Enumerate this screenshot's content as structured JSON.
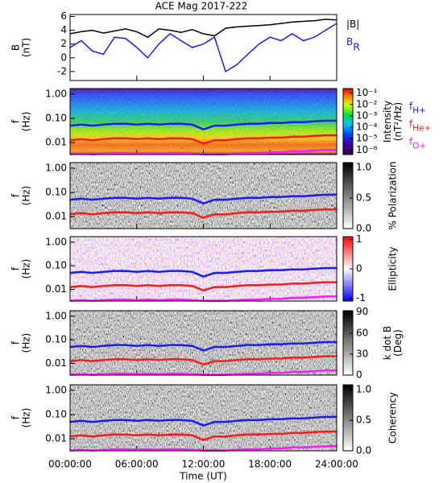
{
  "chart_data": [
    {
      "type": "line",
      "title": "ACE Mag 2017-222",
      "ylabel": [
        "B",
        "(nT)"
      ],
      "x": [
        0,
        1,
        2,
        3,
        4,
        5,
        6,
        7,
        8,
        9,
        10,
        11,
        12,
        13,
        14,
        15,
        16,
        17,
        18,
        19,
        20,
        21,
        22,
        23,
        24
      ],
      "xlim": [
        0,
        24
      ],
      "ylim": [
        -3.3,
        6.3
      ],
      "yticks": [
        -2,
        0,
        2,
        4,
        6
      ],
      "series": [
        {
          "label": "|B|",
          "color": "#000000",
          "values": [
            3.5,
            3.8,
            4.0,
            3.6,
            3.9,
            4.2,
            3.8,
            3.0,
            4.2,
            4.0,
            3.7,
            4.1,
            3.5,
            3.2,
            4.3,
            4.5,
            4.6,
            4.7,
            4.8,
            5.0,
            5.2,
            5.3,
            5.4,
            5.6,
            5.5
          ]
        },
        {
          "label": "B",
          "subscript": "R",
          "color": "#1a1aff",
          "values": [
            1.5,
            2.5,
            1.0,
            0.5,
            3.0,
            2.8,
            1.5,
            0.0,
            2.0,
            3.5,
            2.5,
            1.5,
            2.0,
            3.0,
            -2.0,
            -1.0,
            0.5,
            2.0,
            3.0,
            2.5,
            3.5,
            2.5,
            3.0,
            4.0,
            5.0
          ]
        }
      ]
    },
    {
      "type": "spectrogram",
      "ylabel": [
        "f",
        "(Hz)"
      ],
      "log_y": true,
      "x": [
        0,
        1,
        2,
        3,
        4,
        5,
        6,
        7,
        8,
        9,
        10,
        11,
        12,
        13,
        14,
        15,
        16,
        17,
        18,
        19,
        20,
        21,
        22,
        23,
        24
      ],
      "xlim": [
        0,
        24
      ],
      "ylim": [
        0.0032,
        1.7
      ],
      "yticks": [
        {
          "value": 0.01,
          "label": "0.01"
        },
        {
          "value": 0.1,
          "label": "0.10"
        },
        {
          "value": 1,
          "label": "1.00"
        }
      ],
      "colorbar": {
        "label": [
          "Intensity",
          "(nT²/Hz)"
        ],
        "colormap": "rainbow",
        "log": true,
        "lim": [
          4e-07,
          0.25
        ],
        "ticks": [
          {
            "value": 0.1,
            "label": "10⁻¹"
          },
          {
            "value": 0.01,
            "label": "10⁻²"
          },
          {
            "value": 0.001,
            "label": "10⁻³"
          },
          {
            "value": 0.0001,
            "label": "10⁻⁴"
          },
          {
            "value": 1e-05,
            "label": "10⁻⁵"
          },
          {
            "value": 1e-06,
            "label": "10⁻⁶"
          }
        ]
      },
      "series": [
        {
          "label": "f",
          "subscript": "H+",
          "color": "#1a1aff",
          "values": [
            0.05,
            0.055,
            0.05,
            0.055,
            0.06,
            0.06,
            0.055,
            0.06,
            0.055,
            0.06,
            0.06,
            0.055,
            0.035,
            0.05,
            0.05,
            0.055,
            0.06,
            0.06,
            0.065,
            0.065,
            0.07,
            0.07,
            0.075,
            0.08,
            0.08
          ]
        },
        {
          "label": "f",
          "subscript": "He+",
          "color": "#ff1a1a",
          "values": [
            0.0125,
            0.014,
            0.0125,
            0.014,
            0.015,
            0.015,
            0.014,
            0.015,
            0.014,
            0.015,
            0.015,
            0.014,
            0.009,
            0.0125,
            0.0125,
            0.014,
            0.015,
            0.015,
            0.016,
            0.016,
            0.0175,
            0.0175,
            0.019,
            0.02,
            0.02
          ]
        },
        {
          "label": "f",
          "subscript": "O+",
          "color": "#ff1aff",
          "values": [
            0.0033,
            0.0035,
            0.0033,
            0.0035,
            0.0037,
            0.0037,
            0.0035,
            0.0037,
            0.0035,
            0.0037,
            0.0037,
            0.0035,
            0.0033,
            0.0033,
            0.0033,
            0.0035,
            0.0037,
            0.0037,
            0.004,
            0.004,
            0.0044,
            0.0044,
            0.0047,
            0.005,
            0.005
          ]
        }
      ]
    },
    {
      "type": "spectrogram",
      "ylabel": [
        "f",
        "(Hz)"
      ],
      "log_y": true,
      "x": [
        0,
        1,
        2,
        3,
        4,
        5,
        6,
        7,
        8,
        9,
        10,
        11,
        12,
        13,
        14,
        15,
        16,
        17,
        18,
        19,
        20,
        21,
        22,
        23,
        24
      ],
      "xlim": [
        0,
        24
      ],
      "ylim": [
        0.0032,
        1.7
      ],
      "yticks": [
        {
          "value": 0.01,
          "label": "0.01"
        },
        {
          "value": 0.1,
          "label": "0.10"
        },
        {
          "value": 1,
          "label": "1.00"
        }
      ],
      "colorbar": {
        "label": [
          "% Polarization"
        ],
        "colormap": "gray",
        "lim": [
          0,
          1.08
        ],
        "ticks": [
          {
            "value": 0,
            "label": "0.0"
          },
          {
            "value": 0.5,
            "label": "0.5"
          },
          {
            "value": 1,
            "label": "1.0"
          }
        ]
      },
      "series": [
        {
          "color": "#1a1aff",
          "values": [
            0.05,
            0.055,
            0.05,
            0.055,
            0.06,
            0.06,
            0.055,
            0.06,
            0.055,
            0.06,
            0.06,
            0.055,
            0.035,
            0.05,
            0.05,
            0.055,
            0.06,
            0.06,
            0.065,
            0.065,
            0.07,
            0.07,
            0.075,
            0.08,
            0.08
          ]
        },
        {
          "color": "#ff1a1a",
          "values": [
            0.0125,
            0.014,
            0.0125,
            0.014,
            0.015,
            0.015,
            0.014,
            0.015,
            0.014,
            0.015,
            0.015,
            0.014,
            0.009,
            0.0125,
            0.0125,
            0.014,
            0.015,
            0.015,
            0.016,
            0.016,
            0.0175,
            0.0175,
            0.019,
            0.02,
            0.02
          ]
        }
      ]
    },
    {
      "type": "spectrogram",
      "ylabel": [
        "f",
        "(Hz)"
      ],
      "log_y": true,
      "x": [
        0,
        1,
        2,
        3,
        4,
        5,
        6,
        7,
        8,
        9,
        10,
        11,
        12,
        13,
        14,
        15,
        16,
        17,
        18,
        19,
        20,
        21,
        22,
        23,
        24
      ],
      "xlim": [
        0,
        24
      ],
      "ylim": [
        0.0032,
        1.7
      ],
      "yticks": [
        {
          "value": 0.01,
          "label": "0.01"
        },
        {
          "value": 0.1,
          "label": "0.10"
        },
        {
          "value": 1,
          "label": "1.00"
        }
      ],
      "colorbar": {
        "label": [
          "Ellipticity"
        ],
        "colormap": "bwr",
        "lim": [
          -1.1,
          1.1
        ],
        "ticks": [
          -1,
          0,
          1
        ]
      },
      "series": [
        {
          "color": "#1a1aff",
          "values": [
            0.05,
            0.055,
            0.05,
            0.055,
            0.06,
            0.06,
            0.055,
            0.06,
            0.055,
            0.06,
            0.06,
            0.055,
            0.035,
            0.05,
            0.05,
            0.055,
            0.06,
            0.06,
            0.065,
            0.065,
            0.07,
            0.07,
            0.075,
            0.08,
            0.08
          ]
        },
        {
          "color": "#ff1a1a",
          "values": [
            0.0125,
            0.014,
            0.0125,
            0.014,
            0.015,
            0.015,
            0.014,
            0.015,
            0.014,
            0.015,
            0.015,
            0.014,
            0.009,
            0.0125,
            0.0125,
            0.014,
            0.015,
            0.015,
            0.016,
            0.016,
            0.0175,
            0.0175,
            0.019,
            0.02,
            0.02
          ]
        },
        {
          "color": "#ff1aff",
          "values": [
            0.0033,
            0.0035,
            0.0033,
            0.0035,
            0.0037,
            0.0037,
            0.0035,
            0.0037,
            0.0035,
            0.0037,
            0.0037,
            0.0035,
            0.0033,
            0.0033,
            0.0033,
            0.0035,
            0.0037,
            0.0037,
            0.004,
            0.004,
            0.0044,
            0.0044,
            0.0047,
            0.005,
            0.005
          ]
        }
      ]
    },
    {
      "type": "spectrogram",
      "ylabel": [
        "f",
        "(Hz)"
      ],
      "log_y": true,
      "x": [
        0,
        1,
        2,
        3,
        4,
        5,
        6,
        7,
        8,
        9,
        10,
        11,
        12,
        13,
        14,
        15,
        16,
        17,
        18,
        19,
        20,
        21,
        22,
        23,
        24
      ],
      "xlim": [
        0,
        24
      ],
      "ylim": [
        0.0032,
        1.7
      ],
      "yticks": [
        {
          "value": 0.01,
          "label": "0.01"
        },
        {
          "value": 0.1,
          "label": "0.10"
        },
        {
          "value": 1,
          "label": "1.00"
        }
      ],
      "colorbar": {
        "label": [
          "k dot B",
          "(Deg)"
        ],
        "colormap": "gray",
        "lim": [
          0,
          92
        ],
        "ticks": [
          0,
          30,
          60,
          90
        ]
      },
      "series": [
        {
          "color": "#1a1aff",
          "values": [
            0.05,
            0.055,
            0.05,
            0.055,
            0.06,
            0.06,
            0.055,
            0.06,
            0.055,
            0.06,
            0.06,
            0.055,
            0.035,
            0.05,
            0.05,
            0.055,
            0.06,
            0.06,
            0.065,
            0.065,
            0.07,
            0.07,
            0.075,
            0.08,
            0.08
          ]
        },
        {
          "color": "#ff1a1a",
          "values": [
            0.0125,
            0.014,
            0.0125,
            0.014,
            0.015,
            0.015,
            0.014,
            0.015,
            0.014,
            0.015,
            0.015,
            0.014,
            0.009,
            0.0125,
            0.0125,
            0.014,
            0.015,
            0.015,
            0.016,
            0.016,
            0.0175,
            0.0175,
            0.019,
            0.02,
            0.02
          ]
        },
        {
          "color": "#ff1aff",
          "values": [
            0.0033,
            0.0035,
            0.0033,
            0.0035,
            0.0037,
            0.0037,
            0.0035,
            0.0037,
            0.0035,
            0.0037,
            0.0037,
            0.0035,
            0.0033,
            0.0033,
            0.0033,
            0.0035,
            0.0037,
            0.0037,
            0.004,
            0.004,
            0.0044,
            0.0044,
            0.0047,
            0.005,
            0.005
          ]
        }
      ]
    },
    {
      "type": "spectrogram",
      "ylabel": [
        "f",
        "(Hz)"
      ],
      "log_y": true,
      "x": [
        0,
        1,
        2,
        3,
        4,
        5,
        6,
        7,
        8,
        9,
        10,
        11,
        12,
        13,
        14,
        15,
        16,
        17,
        18,
        19,
        20,
        21,
        22,
        23,
        24
      ],
      "xlim": [
        0,
        24
      ],
      "ylim": [
        0.0032,
        1.7
      ],
      "yticks": [
        {
          "value": 0.01,
          "label": "0.01"
        },
        {
          "value": 0.1,
          "label": "0.10"
        },
        {
          "value": 1,
          "label": "1.00"
        }
      ],
      "colorbar": {
        "label": [
          "Coherency"
        ],
        "colormap": "gray",
        "lim": [
          0,
          1.08
        ],
        "ticks": [
          {
            "value": 0,
            "label": "0.0"
          },
          {
            "value": 0.5,
            "label": "0.5"
          },
          {
            "value": 1,
            "label": "1.0"
          }
        ]
      },
      "xlabel": "Time (UT)",
      "xticks": [
        {
          "value": 0,
          "label": "00:00:00"
        },
        {
          "value": 6,
          "label": "06:00:00"
        },
        {
          "value": 12,
          "label": "12:00:00"
        },
        {
          "value": 18,
          "label": "18:00:00"
        },
        {
          "value": 24,
          "label": "24:00:00"
        }
      ],
      "series": [
        {
          "color": "#1a1aff",
          "values": [
            0.05,
            0.055,
            0.05,
            0.055,
            0.06,
            0.06,
            0.055,
            0.06,
            0.055,
            0.06,
            0.06,
            0.055,
            0.035,
            0.05,
            0.05,
            0.055,
            0.06,
            0.06,
            0.065,
            0.065,
            0.07,
            0.07,
            0.075,
            0.08,
            0.08
          ]
        },
        {
          "color": "#ff1a1a",
          "values": [
            0.0125,
            0.014,
            0.0125,
            0.014,
            0.015,
            0.015,
            0.014,
            0.015,
            0.014,
            0.015,
            0.015,
            0.014,
            0.009,
            0.0125,
            0.0125,
            0.014,
            0.015,
            0.015,
            0.016,
            0.016,
            0.0175,
            0.0175,
            0.019,
            0.02,
            0.02
          ]
        },
        {
          "color": "#ff1aff",
          "values": [
            0.0033,
            0.0035,
            0.0033,
            0.0035,
            0.0037,
            0.0037,
            0.0035,
            0.0037,
            0.0035,
            0.0037,
            0.0037,
            0.0035,
            0.0033,
            0.0033,
            0.0033,
            0.0035,
            0.0037,
            0.0037,
            0.004,
            0.004,
            0.0044,
            0.0044,
            0.0047,
            0.005,
            0.005
          ]
        }
      ]
    }
  ]
}
